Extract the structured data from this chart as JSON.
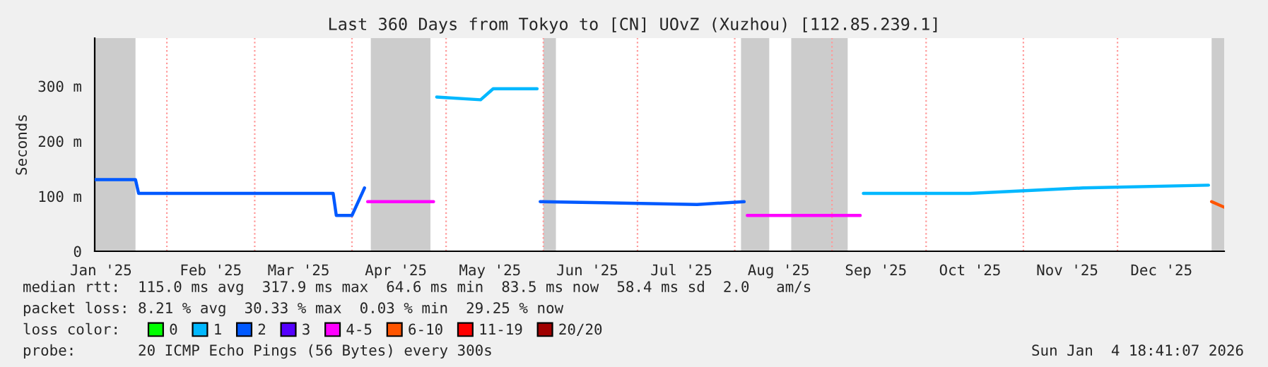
{
  "chart_data": {
    "type": "line",
    "title": "Last 360 Days from Tokyo to [CN] UOvZ (Xuzhou) [112.85.239.1]",
    "ylabel": "Seconds",
    "x": [
      "2025-01-09",
      "2025-01-22",
      "2025-01-23",
      "2025-02-15",
      "2025-03-15",
      "2025-03-26",
      "2025-03-27",
      "2025-04-01",
      "2025-04-05",
      "2025-04-06",
      "2025-04-27",
      "2025-04-28",
      "2025-05-12",
      "2025-05-16",
      "2025-05-30",
      "2025-05-31",
      "2025-06-20",
      "2025-07-20",
      "2025-08-04",
      "2025-08-05",
      "2025-09-10",
      "2025-09-11",
      "2025-10-15",
      "2025-11-20",
      "2025-12-30",
      "2025-12-31",
      "2026-01-04"
    ],
    "series": [
      {
        "name": "0",
        "color": "#00ff00",
        "values": [
          null,
          null,
          null,
          null,
          null,
          null,
          null,
          null,
          null,
          null,
          null,
          null,
          null,
          null,
          null,
          null,
          null,
          null,
          null,
          null,
          null,
          null,
          null,
          null,
          null,
          null,
          null
        ]
      },
      {
        "name": "1",
        "color": "#00b8ff",
        "values": [
          null,
          null,
          null,
          null,
          null,
          null,
          null,
          null,
          null,
          null,
          null,
          280,
          275,
          295,
          295,
          null,
          null,
          null,
          null,
          null,
          null,
          105,
          105,
          115,
          120,
          null,
          null
        ]
      },
      {
        "name": "2",
        "color": "#0059ff",
        "values": [
          130,
          130,
          105,
          105,
          105,
          105,
          65,
          65,
          115,
          null,
          null,
          null,
          null,
          null,
          null,
          90,
          88,
          85,
          90,
          null,
          null,
          null,
          null,
          null,
          null,
          null,
          null
        ]
      },
      {
        "name": "3",
        "color": "#5500ff",
        "values": [
          null,
          null,
          null,
          null,
          null,
          null,
          null,
          null,
          null,
          null,
          null,
          null,
          null,
          null,
          null,
          null,
          null,
          null,
          null,
          null,
          null,
          null,
          null,
          null,
          null,
          null,
          null
        ]
      },
      {
        "name": "4-5",
        "color": "#ff00ff",
        "values": [
          null,
          null,
          null,
          null,
          null,
          null,
          null,
          null,
          null,
          90,
          90,
          null,
          null,
          null,
          null,
          null,
          null,
          null,
          null,
          65,
          65,
          null,
          null,
          null,
          null,
          null,
          null
        ]
      },
      {
        "name": "6-10",
        "color": "#ff5500",
        "values": [
          null,
          null,
          null,
          null,
          null,
          null,
          null,
          null,
          null,
          null,
          null,
          null,
          null,
          null,
          null,
          null,
          null,
          null,
          null,
          null,
          null,
          null,
          null,
          null,
          null,
          90,
          80
        ]
      },
      {
        "name": "11-19",
        "color": "#ff0000",
        "values": [
          null,
          null,
          null,
          null,
          null,
          null,
          null,
          null,
          null,
          null,
          null,
          null,
          null,
          null,
          null,
          null,
          null,
          null,
          null,
          null,
          null,
          null,
          null,
          null,
          null,
          null,
          null
        ]
      },
      {
        "name": "20/20",
        "color": "#a00000",
        "values": [
          null,
          null,
          null,
          null,
          null,
          null,
          null,
          null,
          null,
          null,
          null,
          null,
          null,
          null,
          null,
          null,
          null,
          null,
          null,
          null,
          null,
          null,
          null,
          null,
          null,
          null,
          null
        ]
      }
    ],
    "xlim": [
      "2025-01-09",
      "2026-01-04"
    ],
    "xticks": [
      {
        "value": "2025-01-11",
        "label": "Jan '25"
      },
      {
        "value": "2025-02-01",
        "label": null
      },
      {
        "value": "2025-02-15",
        "label": "Feb '25"
      },
      {
        "value": "2025-03-01",
        "label": null
      },
      {
        "value": "2025-03-15",
        "label": "Mar '25"
      },
      {
        "value": "2025-04-01",
        "label": null
      },
      {
        "value": "2025-04-15",
        "label": "Apr '25"
      },
      {
        "value": "2025-05-01",
        "label": null
      },
      {
        "value": "2025-05-15",
        "label": "May '25"
      },
      {
        "value": "2025-06-01",
        "label": null
      },
      {
        "value": "2025-06-15",
        "label": "Jun '25"
      },
      {
        "value": "2025-07-01",
        "label": null
      },
      {
        "value": "2025-07-15",
        "label": "Jul '25"
      },
      {
        "value": "2025-08-01",
        "label": null
      },
      {
        "value": "2025-08-15",
        "label": "Aug '25"
      },
      {
        "value": "2025-09-01",
        "label": null
      },
      {
        "value": "2025-09-15",
        "label": "Sep '25"
      },
      {
        "value": "2025-10-01",
        "label": null
      },
      {
        "value": "2025-10-15",
        "label": "Oct '25"
      },
      {
        "value": "2025-11-01",
        "label": null
      },
      {
        "value": "2025-11-15",
        "label": "Nov '25"
      },
      {
        "value": "2025-12-01",
        "label": null
      },
      {
        "value": "2025-12-15",
        "label": "Dec '25"
      }
    ],
    "ylim": [
      0,
      387
    ],
    "yticks": [
      0,
      {
        "value": 100,
        "label": "100 m"
      },
      {
        "value": 200,
        "label": "200 m"
      },
      {
        "value": 300,
        "label": "300 m"
      }
    ],
    "bands": [
      {
        "axis": "x",
        "from": "2025-01-09",
        "to": "2025-01-22",
        "color": "#cccccc"
      },
      {
        "axis": "x",
        "from": "2025-04-07",
        "to": "2025-04-26",
        "color": "#cccccc"
      },
      {
        "axis": "x",
        "from": "2025-06-01",
        "to": "2025-06-05",
        "color": "#cccccc"
      },
      {
        "axis": "x",
        "from": "2025-08-03",
        "to": "2025-08-12",
        "color": "#cccccc"
      },
      {
        "axis": "x",
        "from": "2025-08-19",
        "to": "2025-09-06",
        "color": "#cccccc"
      },
      {
        "axis": "x",
        "from": "2025-12-31",
        "to": "2026-01-04",
        "color": "#cccccc"
      }
    ],
    "grid": "x",
    "legend": "bottom",
    "legend_title": "loss color:",
    "marker": "none",
    "line_style": "solid",
    "annotations": [
      "median rtt:  115.0 ms avg  317.9 ms max  64.6 ms min  83.5 ms now  58.4 ms sd  2.0   am/s",
      "packet loss: 8.21 % avg  30.33 % max  0.03 % min  29.25 % now",
      "probe:       20 ICMP Echo Pings (56 Bytes) every 300s",
      "Sun Jan  4 18:41:07 2026"
    ]
  }
}
